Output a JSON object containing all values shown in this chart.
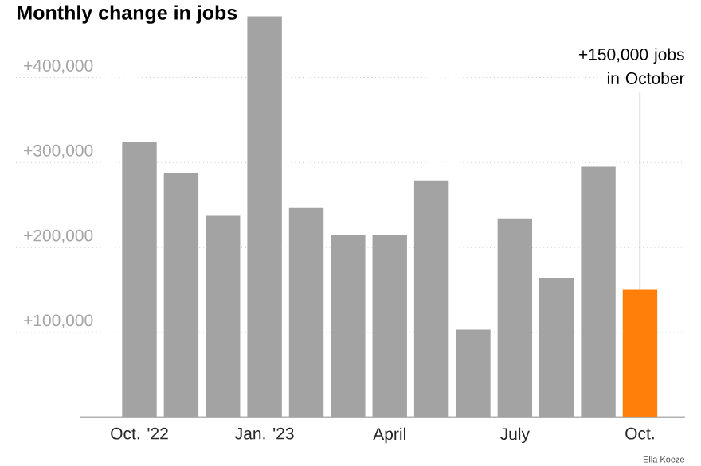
{
  "chart_data": {
    "type": "bar",
    "title": "Monthly change in jobs",
    "categories": [
      "Oct. '22",
      null,
      null,
      "Jan. '23",
      null,
      null,
      "April",
      null,
      null,
      "July",
      null,
      null,
      "Oct."
    ],
    "values": [
      324000,
      288000,
      238000,
      472000,
      247000,
      215000,
      215000,
      279000,
      103000,
      234000,
      164000,
      295000,
      150000
    ],
    "colors": [
      "#a3a3a3",
      "#a3a3a3",
      "#a3a3a3",
      "#a3a3a3",
      "#a3a3a3",
      "#a3a3a3",
      "#a3a3a3",
      "#a3a3a3",
      "#a3a3a3",
      "#a3a3a3",
      "#a3a3a3",
      "#a3a3a3",
      "#ff7f0a"
    ],
    "yticks": [
      {
        "value": 100000,
        "label": "+100,000"
      },
      {
        "value": 200000,
        "label": "+200,000"
      },
      {
        "value": 300000,
        "label": "+300,000"
      },
      {
        "value": 400000,
        "label": "+400,000"
      }
    ],
    "ylim": [
      0,
      472000
    ],
    "grid": "y",
    "annotations": [
      {
        "text": "+150,000 jobs in October",
        "x": "Oct.",
        "y": 150000
      },
      "Ella Koeze"
    ]
  }
}
